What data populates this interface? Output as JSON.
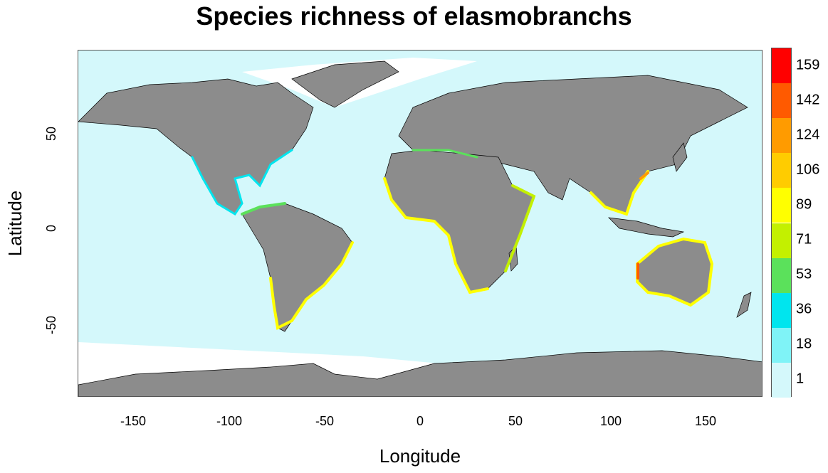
{
  "title": "Species richness of elasmobranchs",
  "xlabel": "Longitude",
  "ylabel": "Latitude",
  "x_ticks": [
    "-150",
    "-100",
    "-50",
    "0",
    "50",
    "100",
    "150"
  ],
  "y_ticks": [
    "50",
    "0",
    "-50"
  ],
  "legend": {
    "labels": [
      "1",
      "18",
      "36",
      "53",
      "71",
      "89",
      "106",
      "124",
      "142",
      "159"
    ],
    "colors": [
      "#d4f8fb",
      "#7ff3f7",
      "#00e5ee",
      "#5be15b",
      "#c3f000",
      "#ffff00",
      "#ffcc00",
      "#ff9b00",
      "#ff5a00",
      "#ff0000"
    ]
  },
  "colors": {
    "ocean": "#d4f8fb",
    "land": "#8c8c8c",
    "ice": "#ffffff"
  }
}
